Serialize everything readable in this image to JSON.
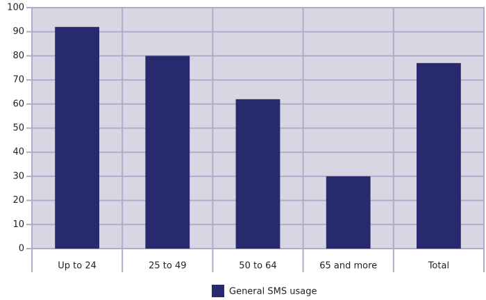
{
  "chart_data": {
    "type": "bar",
    "categories": [
      "Up to 24",
      "25 to 49",
      "50 to 64",
      "65 and more",
      "Total"
    ],
    "series": [
      {
        "name": "General SMS usage",
        "color": "#272a6c",
        "values": [
          92,
          80,
          62,
          30,
          77
        ]
      }
    ],
    "ylim": [
      0,
      100
    ],
    "yticks": [
      0,
      10,
      20,
      30,
      40,
      50,
      60,
      70,
      80,
      90,
      100
    ],
    "grid": true,
    "legend": "bottom"
  }
}
